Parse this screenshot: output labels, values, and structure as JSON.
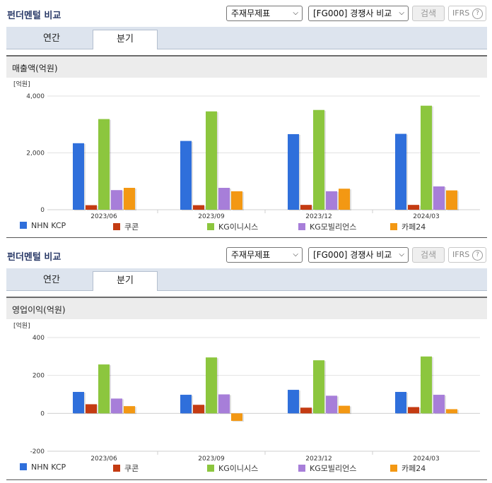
{
  "panels": [
    {
      "title": "펀더멘털 비교",
      "select1": "주재무제표",
      "select2": "[FG000] 경쟁사 비교",
      "search_label": "검색",
      "ifrs_label": "IFRS",
      "ifrs_help": "?",
      "tabs": [
        "연간",
        "분기"
      ],
      "active_tab": 1,
      "section_title": "매출액(억원)",
      "chart_data": {
        "type": "bar",
        "unit_label": "[억원]",
        "categories": [
          "2023/06",
          "2023/09",
          "2023/12",
          "2024/03"
        ],
        "ylim": [
          0,
          4000
        ],
        "yticks": [
          0,
          2000,
          4000
        ],
        "ytick_labels": [
          "0",
          "2,000",
          "4,000"
        ],
        "grid": true,
        "series": [
          {
            "name": "NHN KCP",
            "color": "#2f6fdb",
            "values": [
              2340,
              2420,
              2660,
              2670
            ]
          },
          {
            "name": "쿠콘",
            "color": "#c43b12",
            "values": [
              160,
              160,
              170,
              170
            ]
          },
          {
            "name": "KG이니시스",
            "color": "#8cc63e",
            "values": [
              3190,
              3460,
              3510,
              3660
            ]
          },
          {
            "name": "KG모빌리언스",
            "color": "#a77ed9",
            "values": [
              690,
              770,
              650,
              820
            ]
          },
          {
            "name": "카페24",
            "color": "#f39813",
            "values": [
              770,
              650,
              740,
              680
            ]
          }
        ]
      }
    },
    {
      "title": "펀더멘털 비교",
      "select1": "주재무제표",
      "select2": "[FG000] 경쟁사 비교",
      "search_label": "검색",
      "ifrs_label": "IFRS",
      "ifrs_help": "?",
      "tabs": [
        "연간",
        "분기"
      ],
      "active_tab": 1,
      "section_title": "영업이익(억원)",
      "chart_data": {
        "type": "bar",
        "unit_label": "[억원]",
        "categories": [
          "2023/06",
          "2023/09",
          "2023/12",
          "2024/03"
        ],
        "ylim": [
          -200,
          400
        ],
        "yticks": [
          -200,
          0,
          200,
          400
        ],
        "ytick_labels": [
          "-200",
          "0",
          "200",
          "400"
        ],
        "grid": true,
        "series": [
          {
            "name": "NHN KCP",
            "color": "#2f6fdb",
            "values": [
              113,
              98,
              124,
              113
            ]
          },
          {
            "name": "쿠콘",
            "color": "#c43b12",
            "values": [
              48,
              45,
              30,
              33
            ]
          },
          {
            "name": "KG이니시스",
            "color": "#8cc63e",
            "values": [
              258,
              295,
              280,
              300
            ]
          },
          {
            "name": "KG모빌리언스",
            "color": "#a77ed9",
            "values": [
              78,
              100,
              93,
              98
            ]
          },
          {
            "name": "카페24",
            "color": "#f39813",
            "values": [
              38,
              -40,
              40,
              22
            ]
          }
        ]
      }
    }
  ]
}
